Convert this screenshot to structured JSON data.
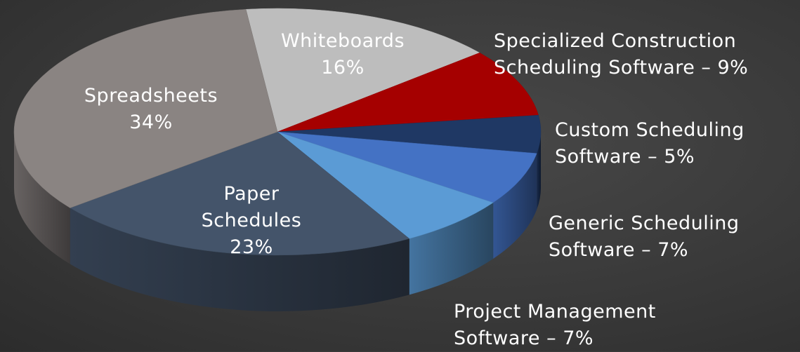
{
  "chart_data": {
    "type": "pie",
    "categories": [
      "Whiteboards",
      "Specialized Construction Scheduling Software",
      "Custom Scheduling Software",
      "Generic Scheduling Software",
      "Project Management Software",
      "Paper Schedules",
      "Spreadsheets"
    ],
    "values": [
      16,
      9,
      5,
      7,
      7,
      23,
      34
    ],
    "value_labels": [
      "16%",
      "– 9%",
      "– 5%",
      "– 7%",
      "– 7%",
      "23%",
      "34%"
    ],
    "colors": [
      "#bdbdbd",
      "#a50000",
      "#1f3864",
      "#4472c4",
      "#5b9bd5",
      "#44546a",
      "#8a8482"
    ]
  }
}
